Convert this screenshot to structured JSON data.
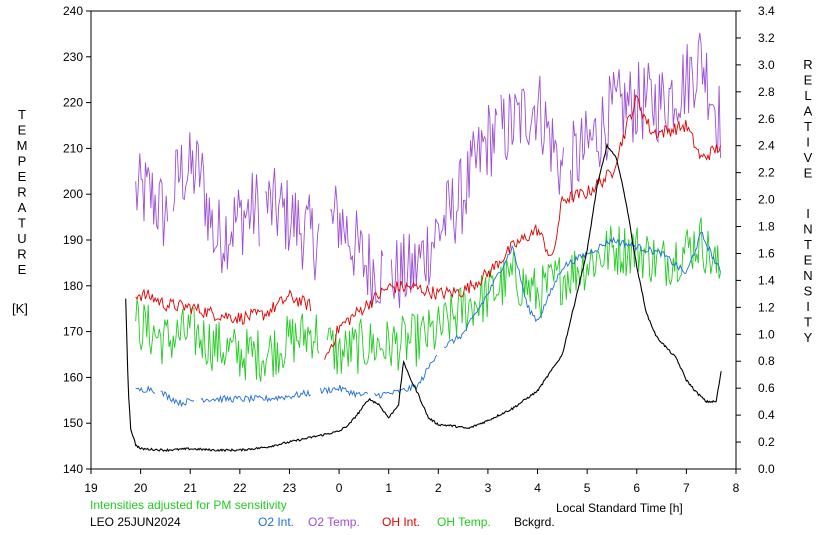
{
  "chart_data": {
    "type": "line",
    "left_axis": {
      "label_letters": [
        "T",
        "E",
        "M",
        "P",
        "E",
        "R",
        "A",
        "T",
        "U",
        "R",
        "E"
      ],
      "unit": "[K]",
      "ticks": [
        140,
        150,
        160,
        170,
        180,
        190,
        200,
        210,
        220,
        230,
        240
      ],
      "range": [
        140,
        240
      ]
    },
    "right_axis": {
      "label_word1": [
        "R",
        "E",
        "L",
        "A",
        "T",
        "I",
        "V",
        "E"
      ],
      "label_word2": [
        "I",
        "N",
        "T",
        "E",
        "N",
        "S",
        "I",
        "T",
        "Y"
      ],
      "ticks": [
        "0.0",
        "0.2",
        "0.4",
        "0.6",
        "0.8",
        "1.0",
        "1.2",
        "1.4",
        "1.6",
        "1.8",
        "2.0",
        "2.2",
        "2.4",
        "2.6",
        "2.8",
        "3.0",
        "3.2",
        "3.4"
      ],
      "range": [
        0,
        3.4
      ]
    },
    "x_axis": {
      "label": "Local Standard Time [h]",
      "ticks": [
        "19",
        "20",
        "21",
        "22",
        "23",
        "0",
        "1",
        "2",
        "3",
        "4",
        "5",
        "6",
        "7",
        "8"
      ],
      "range_hours": [
        19,
        32
      ]
    },
    "note": "Intensities adjusted for PM sensitivity",
    "station": "LEO 25JUN2024",
    "colors": {
      "o2_int": "#1f6fd6",
      "o2_temp": "#9b4fd6",
      "oh_int": "#e00000",
      "oh_temp": "#22cc22",
      "bckgrd": "#000000",
      "note": "#22cc22"
    },
    "legend": [
      {
        "name": "O2 Int.",
        "color": "#1f6fd6"
      },
      {
        "name": "O2 Temp.",
        "color": "#9b4fd6"
      },
      {
        "name": "OH Int.",
        "color": "#e00000"
      },
      {
        "name": "OH Temp.",
        "color": "#22cc22"
      },
      {
        "name": "Bckgrd.",
        "color": "#000000"
      }
    ],
    "series": [
      {
        "key": "bckgrd",
        "axis": "right",
        "x": [
          19.7,
          19.75,
          19.8,
          19.9,
          20.0,
          20.5,
          21.0,
          21.5,
          22.0,
          22.5,
          23.0,
          23.5,
          24.0,
          24.2,
          24.4,
          24.6,
          24.8,
          25.0,
          25.2,
          25.3,
          25.4,
          25.6,
          25.8,
          26.0,
          26.3,
          26.6,
          27.0,
          27.5,
          28.0,
          28.5,
          29.0,
          29.2,
          29.4,
          29.6,
          29.8,
          30.0,
          30.2,
          30.4,
          30.6,
          30.8,
          31.0,
          31.2,
          31.4,
          31.6,
          31.7
        ],
        "values": [
          1.27,
          0.6,
          0.3,
          0.18,
          0.15,
          0.14,
          0.15,
          0.14,
          0.14,
          0.16,
          0.2,
          0.24,
          0.28,
          0.33,
          0.42,
          0.52,
          0.48,
          0.38,
          0.48,
          0.8,
          0.7,
          0.55,
          0.38,
          0.33,
          0.32,
          0.3,
          0.36,
          0.45,
          0.58,
          0.85,
          1.62,
          2.1,
          2.4,
          2.3,
          1.95,
          1.5,
          1.15,
          0.98,
          0.9,
          0.82,
          0.66,
          0.57,
          0.5,
          0.5,
          0.72
        ]
      },
      {
        "key": "o2_int",
        "axis": "right",
        "x": [
          19.9,
          20.2,
          20.5,
          20.8,
          21.2,
          21.6,
          22.0,
          22.5,
          23.0,
          23.5,
          24.0,
          24.4,
          24.8,
          25.2,
          25.6,
          26.0,
          26.5,
          27.0,
          27.5,
          27.8,
          28.0,
          28.5,
          29.0,
          29.5,
          30.0,
          30.5,
          31.0,
          31.3,
          31.7
        ],
        "values": [
          0.58,
          0.6,
          0.55,
          0.49,
          0.52,
          0.52,
          0.52,
          0.52,
          0.54,
          0.57,
          0.6,
          0.55,
          0.55,
          0.57,
          0.62,
          0.88,
          1.0,
          1.3,
          1.65,
          1.2,
          1.1,
          1.5,
          1.6,
          1.7,
          1.65,
          1.6,
          1.45,
          1.75,
          1.45
        ]
      },
      {
        "key": "o2_temp",
        "axis": "left",
        "x": [
          19.9,
          20.2,
          20.5,
          20.8,
          21.2,
          21.5,
          22.0,
          22.5,
          23.0,
          23.5,
          24.0,
          24.5,
          25.0,
          25.5,
          26.0,
          26.5,
          27.0,
          27.5,
          28.0,
          28.5,
          29.0,
          29.5,
          30.0,
          30.5,
          31.0,
          31.3,
          31.7
        ],
        "values": [
          200,
          200,
          195,
          205,
          205,
          190,
          195,
          198,
          195,
          190,
          195,
          185,
          182,
          183,
          192,
          200,
          212,
          215,
          220,
          205,
          210,
          218,
          220,
          220,
          225,
          230,
          215
        ]
      },
      {
        "key": "oh_int",
        "axis": "right",
        "x": [
          19.9,
          20.2,
          20.5,
          21.0,
          21.5,
          22.0,
          22.5,
          23.0,
          23.5,
          23.7,
          24.0,
          24.5,
          25.0,
          25.5,
          26.0,
          26.5,
          27.0,
          27.5,
          28.0,
          28.3,
          28.5,
          29.0,
          29.5,
          29.8,
          30.0,
          30.3,
          30.5,
          31.0,
          31.3,
          31.7
        ],
        "values": [
          1.3,
          1.28,
          1.22,
          1.2,
          1.15,
          1.12,
          1.15,
          1.28,
          1.2,
          0.8,
          1.05,
          1.2,
          1.35,
          1.35,
          1.3,
          1.32,
          1.45,
          1.65,
          1.78,
          1.55,
          2.0,
          2.05,
          2.2,
          2.55,
          2.75,
          2.5,
          2.5,
          2.55,
          2.3,
          2.4
        ]
      },
      {
        "key": "oh_temp",
        "axis": "left",
        "x": [
          19.9,
          20.2,
          20.5,
          21.0,
          21.5,
          22.0,
          22.5,
          23.0,
          23.5,
          23.7,
          24.0,
          24.5,
          25.0,
          25.5,
          26.0,
          26.5,
          27.0,
          27.5,
          28.0,
          28.5,
          29.0,
          29.5,
          30.0,
          30.5,
          31.0,
          31.3,
          31.7
        ],
        "values": [
          172,
          170,
          168,
          170,
          167,
          165,
          165,
          168,
          170,
          168,
          165,
          167,
          167,
          168,
          170,
          175,
          178,
          182,
          178,
          182,
          185,
          188,
          188,
          185,
          188,
          190,
          182
        ]
      }
    ]
  }
}
